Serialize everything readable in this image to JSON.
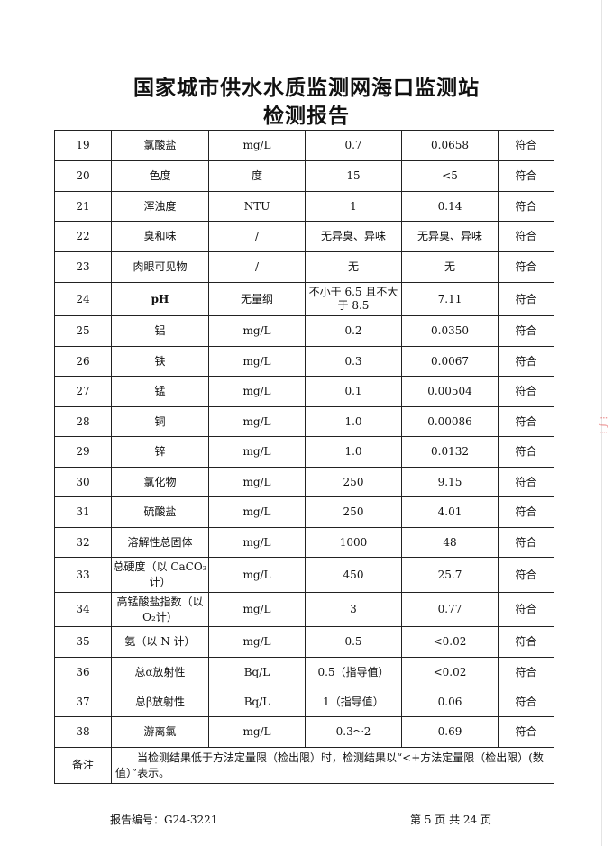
{
  "header": {
    "title_line1": "国家城市供水水质监测网海口监测站",
    "title_line2": "检测报告"
  },
  "rows": [
    {
      "no": "19",
      "item": "氯酸盐",
      "unit": "mg/L",
      "limit": "0.7",
      "result": "0.0658",
      "verdict": "符合"
    },
    {
      "no": "20",
      "item": "色度",
      "unit": "度",
      "limit": "15",
      "result": "<5",
      "verdict": "符合"
    },
    {
      "no": "21",
      "item": "浑浊度",
      "unit": "NTU",
      "limit": "1",
      "result": "0.14",
      "verdict": "符合"
    },
    {
      "no": "22",
      "item": "臭和味",
      "unit": "/",
      "limit": "无异臭、异味",
      "result": "无异臭、异味",
      "verdict": "符合"
    },
    {
      "no": "23",
      "item": "肉眼可见物",
      "unit": "/",
      "limit": "无",
      "result": "无",
      "verdict": "符合"
    },
    {
      "no": "24",
      "item": "pH",
      "unit": "无量纲",
      "limit": "不小于 6.5 且不大于 8.5",
      "result": "7.11",
      "verdict": "符合"
    },
    {
      "no": "25",
      "item": "铝",
      "unit": "mg/L",
      "limit": "0.2",
      "result": "0.0350",
      "verdict": "符合"
    },
    {
      "no": "26",
      "item": "铁",
      "unit": "mg/L",
      "limit": "0.3",
      "result": "0.0067",
      "verdict": "符合"
    },
    {
      "no": "27",
      "item": "锰",
      "unit": "mg/L",
      "limit": "0.1",
      "result": "0.00504",
      "verdict": "符合"
    },
    {
      "no": "28",
      "item": "铜",
      "unit": "mg/L",
      "limit": "1.0",
      "result": "0.00086",
      "verdict": "符合"
    },
    {
      "no": "29",
      "item": "锌",
      "unit": "mg/L",
      "limit": "1.0",
      "result": "0.0132",
      "verdict": "符合"
    },
    {
      "no": "30",
      "item": "氯化物",
      "unit": "mg/L",
      "limit": "250",
      "result": "9.15",
      "verdict": "符合"
    },
    {
      "no": "31",
      "item": "硫酸盐",
      "unit": "mg/L",
      "limit": "250",
      "result": "4.01",
      "verdict": "符合"
    },
    {
      "no": "32",
      "item": "溶解性总固体",
      "unit": "mg/L",
      "limit": "1000",
      "result": "48",
      "verdict": "符合"
    },
    {
      "no": "33",
      "item": "总硬度（以 CaCO₃计）",
      "unit": "mg/L",
      "limit": "450",
      "result": "25.7",
      "verdict": "符合"
    },
    {
      "no": "34",
      "item": "高锰酸盐指数（以 O₂计）",
      "unit": "mg/L",
      "limit": "3",
      "result": "0.77",
      "verdict": "符合"
    },
    {
      "no": "35",
      "item": "氨（以 N 计）",
      "unit": "mg/L",
      "limit": "0.5",
      "result": "<0.02",
      "verdict": "符合"
    },
    {
      "no": "36",
      "item": "总α放射性",
      "unit": "Bq/L",
      "limit": "0.5（指导值）",
      "result": "<0.02",
      "verdict": "符合"
    },
    {
      "no": "37",
      "item": "总β放射性",
      "unit": "Bq/L",
      "limit": "1（指导值）",
      "result": "0.06",
      "verdict": "符合"
    },
    {
      "no": "38",
      "item": "游离氯",
      "unit": "mg/L",
      "limit": "0.3～2",
      "result": "0.69",
      "verdict": "符合"
    }
  ],
  "note": {
    "label": "备注",
    "text": "当检测结果低于方法定量限（检出限）时，检测结果以“<+方法定量限（检出限）(数值）”表示。"
  },
  "footer": {
    "report_no": "报告编号：G24-3221",
    "page": "第 5 页  共 24 页"
  },
  "stamp_color": "#dd3333"
}
